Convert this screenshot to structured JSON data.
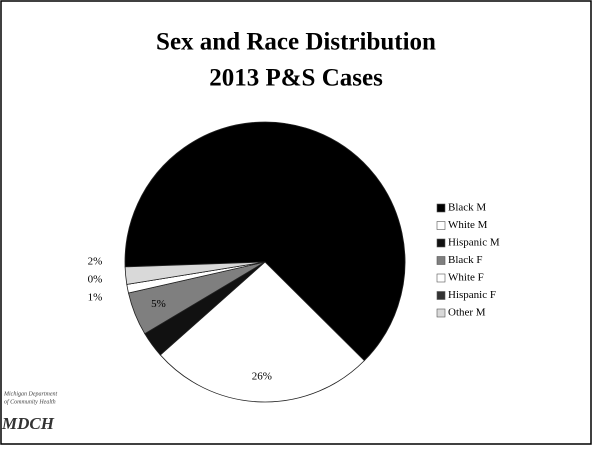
{
  "chart_data": {
    "type": "pie",
    "title": "Sex and Race Distribution",
    "subtitle": "2013 P&S Cases",
    "categories": [
      "Black M",
      "White M",
      "Hispanic M",
      "Black F",
      "White F",
      "Hispanic F",
      "Other M"
    ],
    "values": [
      63,
      26,
      3,
      5,
      1,
      0,
      2
    ],
    "value_labels": [
      null,
      "26%",
      null,
      "5%",
      "1%",
      "0%",
      "2%"
    ],
    "colors": [
      "#000000",
      "#ffffff",
      "#111111",
      "#7f7f7f",
      "#ffffff",
      "#333333",
      "#d9d9d9"
    ],
    "legend": "right"
  },
  "logo": {
    "line1": "Michigan Department",
    "line2": "of Community Health",
    "mark": "MDCH"
  }
}
